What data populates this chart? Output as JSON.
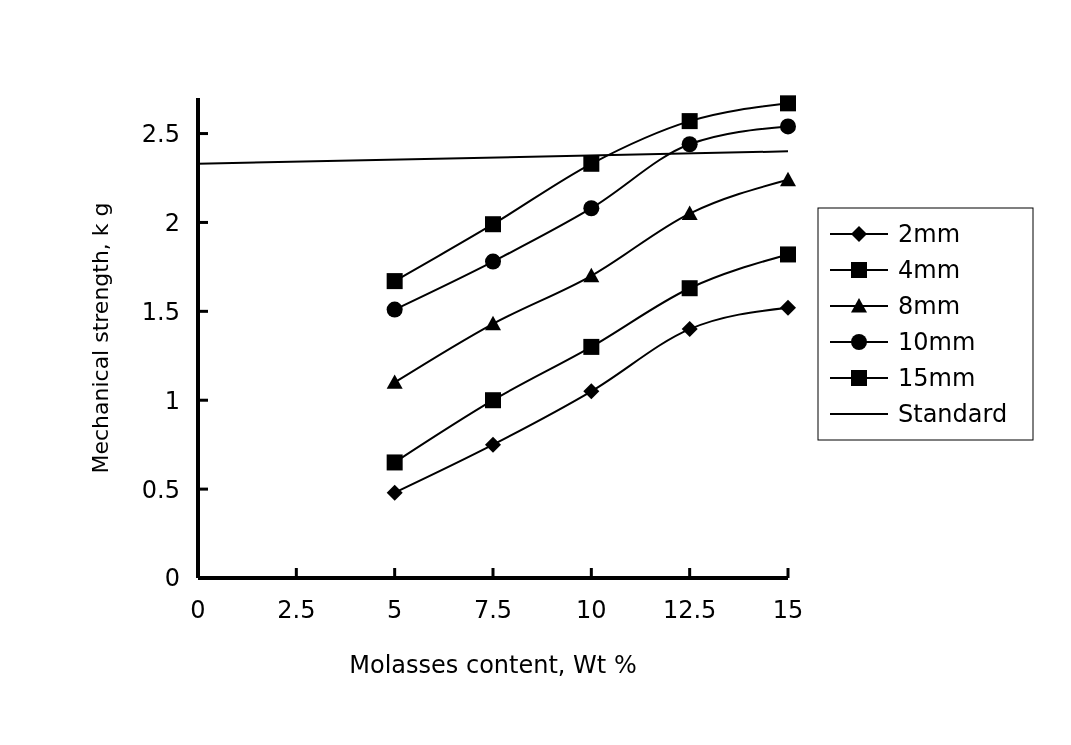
{
  "chart_data": {
    "type": "line",
    "xlabel": "Molasses content, Wt  %",
    "ylabel": "Mechanical strength, k g",
    "xlim": [
      0,
      15
    ],
    "xticks": [
      0,
      2.5,
      5,
      7.5,
      10,
      12.5,
      15
    ],
    "ylim": [
      0,
      2.7
    ],
    "yticks": [
      0,
      0.5,
      1,
      1.5,
      2,
      2.5
    ],
    "grid": false,
    "legend": "right",
    "line_style": "solid",
    "series": [
      {
        "name": "2mm",
        "color": "#000000",
        "marker": "diamond",
        "x": [
          5,
          7.5,
          10,
          12.5,
          15
        ],
        "values": [
          0.48,
          0.75,
          1.05,
          1.4,
          1.52
        ]
      },
      {
        "name": "4mm",
        "color": "#000000",
        "marker": "square",
        "x": [
          5,
          7.5,
          10,
          12.5,
          15
        ],
        "values": [
          0.65,
          1.0,
          1.3,
          1.63,
          1.82
        ]
      },
      {
        "name": "8mm",
        "color": "#000000",
        "marker": "triangle",
        "x": [
          5,
          7.5,
          10,
          12.5,
          15
        ],
        "values": [
          1.1,
          1.43,
          1.7,
          2.05,
          2.24
        ]
      },
      {
        "name": "10mm",
        "color": "#000000",
        "marker": "circle",
        "x": [
          5,
          7.5,
          10,
          12.5,
          15
        ],
        "values": [
          1.51,
          1.78,
          2.08,
          2.44,
          2.54
        ]
      },
      {
        "name": "15mm",
        "color": "#000000",
        "marker": "square",
        "x": [
          5,
          7.5,
          10,
          12.5,
          15
        ],
        "values": [
          1.67,
          1.99,
          2.33,
          2.57,
          2.67
        ]
      },
      {
        "name": "Standard",
        "color": "#000000",
        "marker": "none",
        "x": [
          0,
          15
        ],
        "values": [
          2.33,
          2.4
        ]
      }
    ]
  }
}
